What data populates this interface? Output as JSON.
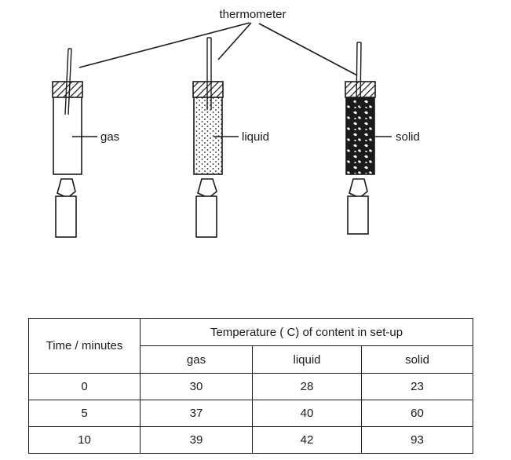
{
  "diagram": {
    "thermometer_label": "thermometer",
    "setups": [
      {
        "content": "gas"
      },
      {
        "content": "liquid"
      },
      {
        "content": "solid"
      }
    ]
  },
  "table": {
    "row_header": "Time / minutes",
    "group_header": "Temperature ( C) of content in set-up",
    "columns": [
      "gas",
      "liquid",
      "solid"
    ],
    "rows": [
      {
        "time": "0",
        "gas": "30",
        "liquid": "28",
        "solid": "23"
      },
      {
        "time": "5",
        "gas": "37",
        "liquid": "40",
        "solid": "60"
      },
      {
        "time": "10",
        "gas": "39",
        "liquid": "42",
        "solid": "93"
      }
    ]
  }
}
